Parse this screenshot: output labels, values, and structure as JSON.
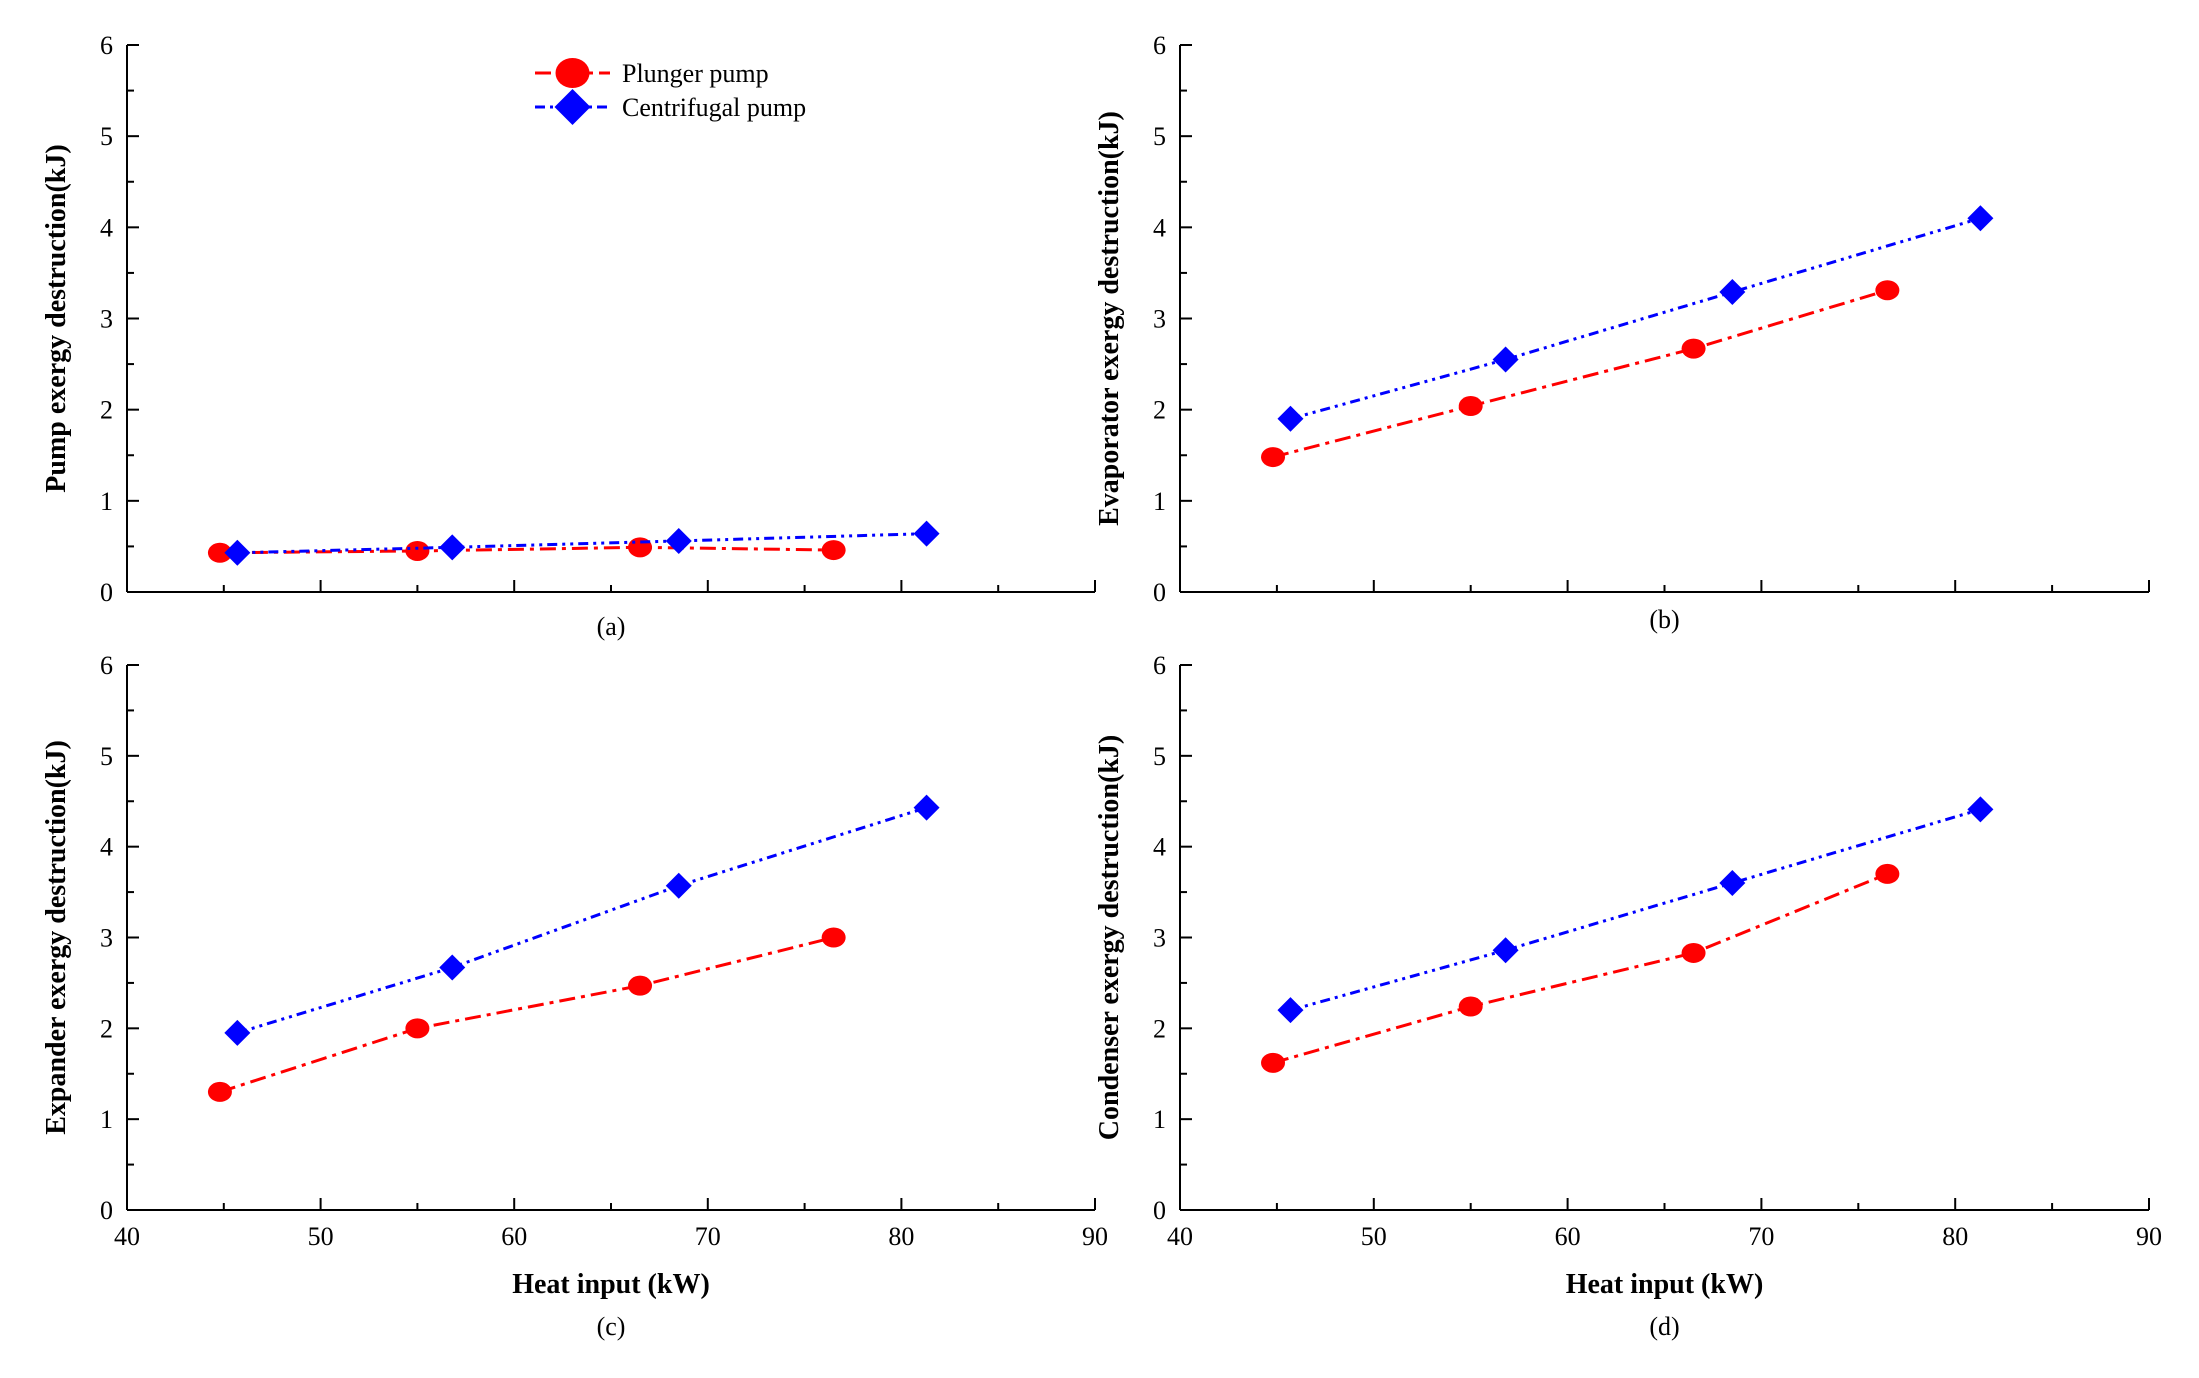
{
  "chart_data": [
    {
      "type": "line",
      "panel_label": "(a)",
      "xlabel": "",
      "ylabel": "Pump exergy destruction(kJ)",
      "xlim": [
        40,
        90
      ],
      "ylim": [
        0,
        6
      ],
      "xticks": [],
      "yticks": [
        "0",
        "1",
        "2",
        "3",
        "4",
        "5",
        "6"
      ],
      "legend": "top-center",
      "series": [
        {
          "name": "Plunger pump",
          "color": "#ff0000",
          "marker": "circle",
          "x": [
            44.8,
            55.0,
            66.5,
            76.5
          ],
          "y": [
            0.43,
            0.45,
            0.49,
            0.46
          ]
        },
        {
          "name": "Centrifugal pump",
          "color": "#0000ff",
          "marker": "diamond",
          "x": [
            45.7,
            56.8,
            68.5,
            81.3
          ],
          "y": [
            0.43,
            0.49,
            0.56,
            0.64
          ]
        }
      ]
    },
    {
      "type": "line",
      "panel_label": "(b)",
      "xlabel": "",
      "ylabel": "Evaporator exergy destruction(kJ)",
      "xlim": [
        40,
        90
      ],
      "ylim": [
        0,
        6
      ],
      "xticks": [],
      "yticks": [
        "0",
        "1",
        "2",
        "3",
        "4",
        "5",
        "6"
      ],
      "series": [
        {
          "name": "Plunger pump",
          "color": "#ff0000",
          "marker": "circle",
          "x": [
            44.8,
            55.0,
            66.5,
            76.5
          ],
          "y": [
            1.48,
            2.04,
            2.67,
            3.31
          ]
        },
        {
          "name": "Centrifugal pump",
          "color": "#0000ff",
          "marker": "diamond",
          "x": [
            45.7,
            56.8,
            68.5,
            81.3
          ],
          "y": [
            1.9,
            2.55,
            3.29,
            4.1
          ]
        }
      ]
    },
    {
      "type": "line",
      "panel_label": "(c)",
      "xlabel": "Heat input (kW)",
      "ylabel": "Expander exergy destruction(kJ)",
      "xlim": [
        40,
        90
      ],
      "ylim": [
        0,
        6
      ],
      "xticks": [
        "40",
        "50",
        "60",
        "70",
        "80",
        "90"
      ],
      "yticks": [
        "0",
        "1",
        "2",
        "3",
        "4",
        "5",
        "6"
      ],
      "series": [
        {
          "name": "Plunger pump",
          "color": "#ff0000",
          "marker": "circle",
          "x": [
            44.8,
            55.0,
            66.5,
            76.5
          ],
          "y": [
            1.3,
            2.0,
            2.47,
            3.0
          ]
        },
        {
          "name": "Centrifugal pump",
          "color": "#0000ff",
          "marker": "diamond",
          "x": [
            45.7,
            56.8,
            68.5,
            81.3
          ],
          "y": [
            1.95,
            2.67,
            3.57,
            4.43
          ]
        }
      ]
    },
    {
      "type": "line",
      "panel_label": "(d)",
      "xlabel": "Heat input (kW)",
      "ylabel": "Condenser exergy destruction(kJ)",
      "xlim": [
        40,
        90
      ],
      "ylim": [
        0,
        6
      ],
      "xticks": [
        "40",
        "50",
        "60",
        "70",
        "80",
        "90"
      ],
      "yticks": [
        "0",
        "1",
        "2",
        "3",
        "4",
        "5",
        "6"
      ],
      "series": [
        {
          "name": "Plunger pump",
          "color": "#ff0000",
          "marker": "circle",
          "x": [
            44.8,
            55.0,
            66.5,
            76.5
          ],
          "y": [
            1.62,
            2.24,
            2.83,
            3.7
          ]
        },
        {
          "name": "Centrifugal pump",
          "color": "#0000ff",
          "marker": "diamond",
          "x": [
            45.7,
            56.8,
            68.5,
            81.3
          ],
          "y": [
            2.2,
            2.86,
            3.6,
            4.41
          ]
        }
      ]
    }
  ]
}
